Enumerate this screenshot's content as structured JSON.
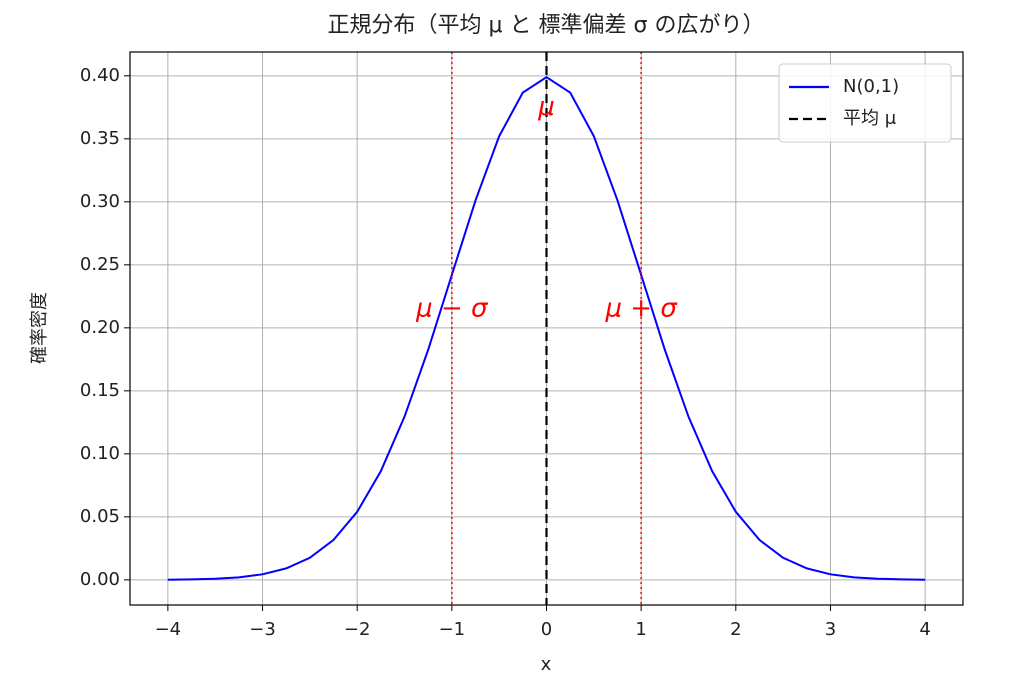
{
  "chart_data": {
    "type": "line",
    "title": "正規分布（平均 μ と 標準偏差 σ の広がり）",
    "xlabel": "x",
    "ylabel": "確率密度",
    "x": [
      -4,
      -3.75,
      -3.5,
      -3.25,
      -3,
      -2.75,
      -2.5,
      -2.25,
      -2,
      -1.75,
      -1.5,
      -1.25,
      -1,
      -0.75,
      -0.5,
      -0.25,
      0,
      0.25,
      0.5,
      0.75,
      1,
      1.25,
      1.5,
      1.75,
      2,
      2.25,
      2.5,
      2.75,
      3,
      3.25,
      3.5,
      3.75,
      4
    ],
    "series": [
      {
        "name": "N(0,1)",
        "color": "#0000ff",
        "values": [
          0.0001,
          0.0004,
          0.0009,
          0.002,
          0.0044,
          0.0091,
          0.0175,
          0.0317,
          0.054,
          0.0863,
          0.1295,
          0.1826,
          0.242,
          0.3011,
          0.3521,
          0.3867,
          0.3989,
          0.3867,
          0.3521,
          0.3011,
          0.242,
          0.1826,
          0.1295,
          0.0863,
          0.054,
          0.0317,
          0.0175,
          0.0091,
          0.0044,
          0.002,
          0.0009,
          0.0004,
          0.0001
        ]
      }
    ],
    "vlines": [
      {
        "name": "平均 μ",
        "x": 0,
        "color": "#000000",
        "style": "dashed"
      },
      {
        "x": -1,
        "color": "#ff0000",
        "style": "dotted"
      },
      {
        "x": 1,
        "color": "#ff0000",
        "style": "dotted"
      }
    ],
    "annotations": [
      {
        "text": "μ",
        "x": 0,
        "y": 0.375
      },
      {
        "text": "μ − σ",
        "x": -1,
        "y": 0.215
      },
      {
        "text": "μ + σ",
        "x": 1,
        "y": 0.215
      }
    ],
    "annotation_color": "#ff0000",
    "xlim": [
      -4.4,
      4.4
    ],
    "ylim": [
      -0.01995,
      0.4189
    ],
    "xticks": [
      {
        "value": -4,
        "label": "−4"
      },
      {
        "value": -3,
        "label": "−3"
      },
      {
        "value": -2,
        "label": "−2"
      },
      {
        "value": -1,
        "label": "−1"
      },
      0,
      1,
      2,
      3,
      4
    ],
    "yticks": [
      {
        "value": 0,
        "label": "0.00"
      },
      {
        "value": 0.05,
        "label": "0.05"
      },
      {
        "value": 0.1,
        "label": "0.10"
      },
      {
        "value": 0.15,
        "label": "0.15"
      },
      {
        "value": 0.2,
        "label": "0.20"
      },
      {
        "value": 0.25,
        "label": "0.25"
      },
      {
        "value": 0.3,
        "label": "0.30"
      },
      {
        "value": 0.35,
        "label": "0.35"
      },
      {
        "value": 0.4,
        "label": "0.40"
      }
    ],
    "grid": true,
    "legend": "upper right"
  }
}
